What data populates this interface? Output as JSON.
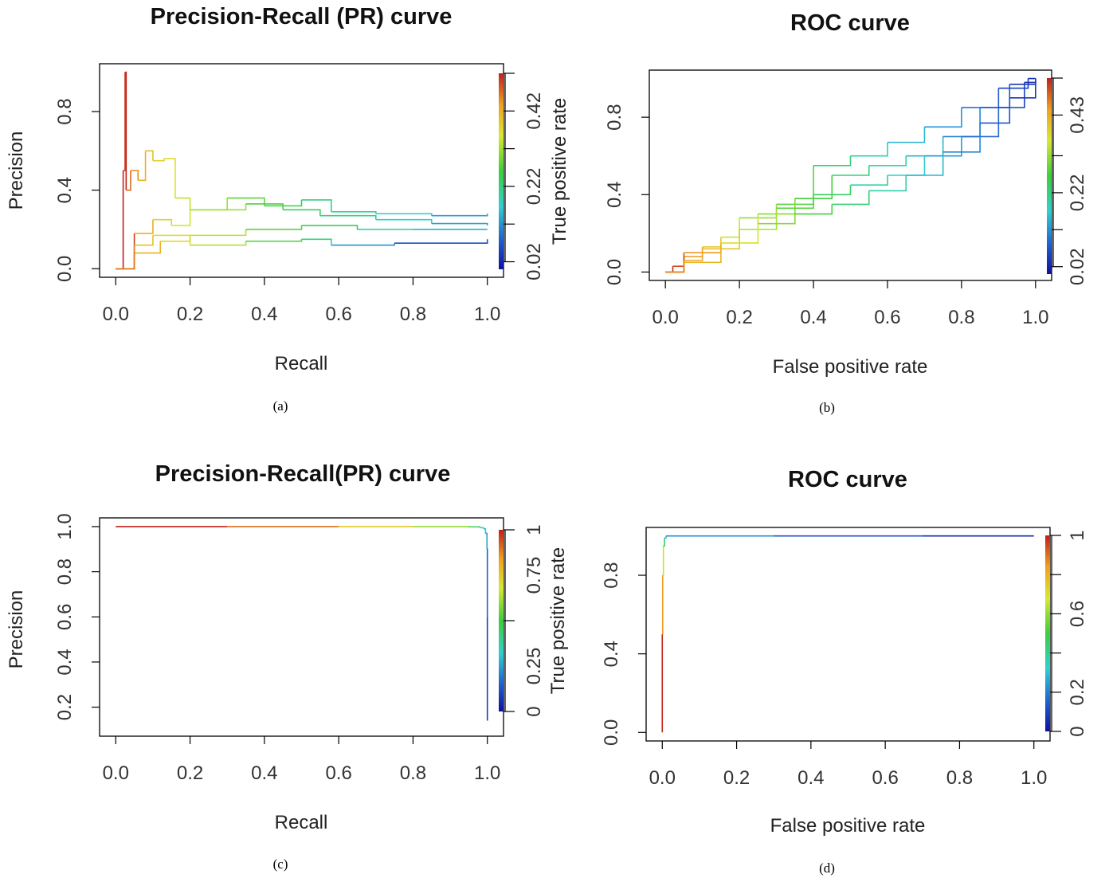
{
  "panels": [
    {
      "caption": "(a)"
    },
    {
      "caption": "(b)"
    },
    {
      "caption": "(c)"
    },
    {
      "caption": "(d)"
    }
  ],
  "chart_data": [
    {
      "type": "line",
      "title": "Precision-Recall (PR) curve",
      "xlabel": "Recall",
      "ylabel": "Precision",
      "colorbar_label": "True positive rate",
      "xlim": [
        0,
        1
      ],
      "ylim": [
        0,
        1
      ],
      "x_ticks": [
        0.0,
        0.2,
        0.4,
        0.6,
        0.8,
        1.0
      ],
      "x_tick_labels": [
        "0.0",
        "0.2",
        "0.4",
        "0.6",
        "0.8",
        "1.0"
      ],
      "y_ticks": [
        0.0,
        0.4,
        0.8
      ],
      "y_tick_labels": [
        "0.0",
        "0.4",
        "0.8"
      ],
      "colorbar_range": [
        0.0,
        0.52
      ],
      "colorbar_ticks": [
        0.02,
        0.22,
        0.42
      ],
      "colorbar_tick_labels": [
        "0.02",
        "0.22",
        "0.42"
      ],
      "colorbar_minor_ticks": [
        0.02,
        0.12,
        0.22,
        0.32,
        0.42,
        0.52
      ],
      "grid": false,
      "series": [
        {
          "points": [
            [
              0.0,
              0.0,
              0.52
            ],
            [
              0.02,
              0.5,
              0.5
            ],
            [
              0.025,
              1.0,
              0.52
            ],
            [
              0.028,
              0.4,
              0.47
            ],
            [
              0.04,
              0.5,
              0.45
            ],
            [
              0.06,
              0.45,
              0.42
            ],
            [
              0.08,
              0.6,
              0.4
            ],
            [
              0.1,
              0.55,
              0.38
            ],
            [
              0.13,
              0.56,
              0.37
            ],
            [
              0.16,
              0.53,
              0.36
            ],
            [
              0.16,
              0.36,
              0.34
            ],
            [
              0.2,
              0.3,
              0.32
            ],
            [
              0.3,
              0.36,
              0.28
            ],
            [
              0.4,
              0.32,
              0.25
            ],
            [
              0.5,
              0.35,
              0.22
            ],
            [
              0.58,
              0.29,
              0.2
            ],
            [
              0.7,
              0.28,
              0.16
            ],
            [
              0.85,
              0.27,
              0.13
            ],
            [
              1.0,
              0.28,
              0.12
            ]
          ]
        },
        {
          "points": [
            [
              0.0,
              0.0,
              0.5
            ],
            [
              0.05,
              0.18,
              0.42
            ],
            [
              0.1,
              0.25,
              0.38
            ],
            [
              0.15,
              0.22,
              0.35
            ],
            [
              0.2,
              0.3,
              0.32
            ],
            [
              0.35,
              0.33,
              0.27
            ],
            [
              0.45,
              0.3,
              0.24
            ],
            [
              0.55,
              0.27,
              0.21
            ],
            [
              0.7,
              0.25,
              0.17
            ],
            [
              0.85,
              0.23,
              0.13
            ],
            [
              1.0,
              0.22,
              0.1
            ]
          ]
        },
        {
          "points": [
            [
              0.0,
              0.0,
              0.48
            ],
            [
              0.05,
              0.08,
              0.42
            ],
            [
              0.12,
              0.14,
              0.38
            ],
            [
              0.2,
              0.17,
              0.33
            ],
            [
              0.35,
              0.2,
              0.28
            ],
            [
              0.5,
              0.22,
              0.24
            ],
            [
              0.65,
              0.2,
              0.19
            ],
            [
              0.8,
              0.2,
              0.14
            ],
            [
              1.0,
              0.2,
              0.1
            ]
          ]
        },
        {
          "points": [
            [
              0.0,
              0.0,
              0.46
            ],
            [
              0.05,
              0.12,
              0.4
            ],
            [
              0.1,
              0.17,
              0.37
            ],
            [
              0.2,
              0.12,
              0.33
            ],
            [
              0.35,
              0.14,
              0.27
            ],
            [
              0.5,
              0.15,
              0.22
            ],
            [
              0.58,
              0.14,
              0.18
            ],
            [
              0.58,
              0.12,
              0.12
            ],
            [
              0.75,
              0.13,
              0.06
            ],
            [
              1.0,
              0.15,
              0.03
            ]
          ]
        }
      ]
    },
    {
      "type": "line",
      "title": "ROC curve",
      "xlabel": "False positive rate",
      "ylabel": "",
      "colorbar_label": "",
      "xlim": [
        0,
        1
      ],
      "ylim": [
        0,
        1
      ],
      "x_ticks": [
        0.0,
        0.2,
        0.4,
        0.6,
        0.8,
        1.0
      ],
      "x_tick_labels": [
        "0.0",
        "0.2",
        "0.4",
        "0.6",
        "0.8",
        "1.0"
      ],
      "y_ticks": [
        0.0,
        0.4,
        0.8
      ],
      "y_tick_labels": [
        "0.0",
        "0.4",
        "0.8"
      ],
      "colorbar_range": [
        0.0,
        0.53
      ],
      "colorbar_ticks": [
        0.02,
        0.22,
        0.43
      ],
      "colorbar_tick_labels": [
        "0.02",
        "0.22",
        "0.43"
      ],
      "colorbar_minor_ticks": [
        0.02,
        0.12,
        0.22,
        0.32,
        0.43,
        0.53
      ],
      "grid": false,
      "series": [
        {
          "points": [
            [
              0.0,
              0.0,
              0.52
            ],
            [
              0.02,
              0.03,
              0.5
            ],
            [
              0.05,
              0.08,
              0.45
            ],
            [
              0.1,
              0.13,
              0.4
            ],
            [
              0.15,
              0.18,
              0.35
            ],
            [
              0.2,
              0.28,
              0.32
            ],
            [
              0.3,
              0.35,
              0.28
            ],
            [
              0.4,
              0.55,
              0.23
            ],
            [
              0.5,
              0.6,
              0.19
            ],
            [
              0.6,
              0.67,
              0.15
            ],
            [
              0.7,
              0.75,
              0.12
            ],
            [
              0.8,
              0.85,
              0.08
            ],
            [
              0.9,
              0.95,
              0.05
            ],
            [
              0.98,
              1.0,
              0.03
            ],
            [
              1.0,
              1.0,
              0.02
            ]
          ]
        },
        {
          "points": [
            [
              0.0,
              0.0,
              0.5
            ],
            [
              0.05,
              0.1,
              0.45
            ],
            [
              0.15,
              0.15,
              0.38
            ],
            [
              0.25,
              0.3,
              0.31
            ],
            [
              0.35,
              0.38,
              0.27
            ],
            [
              0.45,
              0.5,
              0.22
            ],
            [
              0.55,
              0.55,
              0.19
            ],
            [
              0.65,
              0.6,
              0.15
            ],
            [
              0.75,
              0.7,
              0.11
            ],
            [
              0.85,
              0.85,
              0.07
            ],
            [
              0.93,
              0.97,
              0.04
            ],
            [
              1.0,
              1.0,
              0.02
            ]
          ]
        },
        {
          "points": [
            [
              0.0,
              0.0,
              0.48
            ],
            [
              0.05,
              0.06,
              0.44
            ],
            [
              0.1,
              0.12,
              0.4
            ],
            [
              0.2,
              0.22,
              0.33
            ],
            [
              0.3,
              0.33,
              0.28
            ],
            [
              0.4,
              0.4,
              0.24
            ],
            [
              0.5,
              0.45,
              0.2
            ],
            [
              0.6,
              0.5,
              0.17
            ],
            [
              0.7,
              0.6,
              0.13
            ],
            [
              0.8,
              0.7,
              0.09
            ],
            [
              0.9,
              0.85,
              0.05
            ],
            [
              0.97,
              0.98,
              0.03
            ],
            [
              1.0,
              1.0,
              0.02
            ]
          ]
        },
        {
          "points": [
            [
              0.0,
              0.0,
              0.46
            ],
            [
              0.05,
              0.05,
              0.42
            ],
            [
              0.15,
              0.15,
              0.36
            ],
            [
              0.25,
              0.25,
              0.31
            ],
            [
              0.35,
              0.3,
              0.27
            ],
            [
              0.45,
              0.35,
              0.23
            ],
            [
              0.55,
              0.42,
              0.19
            ],
            [
              0.65,
              0.5,
              0.15
            ],
            [
              0.75,
              0.62,
              0.11
            ],
            [
              0.85,
              0.77,
              0.07
            ],
            [
              0.93,
              0.9,
              0.04
            ],
            [
              1.0,
              1.0,
              0.02
            ]
          ]
        }
      ]
    },
    {
      "type": "line",
      "title": "Precision-Recall(PR) curve",
      "xlabel": "Recall",
      "ylabel": "Precision",
      "colorbar_label": "True positive rate",
      "xlim": [
        0,
        1
      ],
      "ylim": [
        0.11,
        1.0
      ],
      "x_ticks": [
        0.0,
        0.2,
        0.4,
        0.6,
        0.8,
        1.0
      ],
      "x_tick_labels": [
        "0.0",
        "0.2",
        "0.4",
        "0.6",
        "0.8",
        "1.0"
      ],
      "y_ticks": [
        0.2,
        0.4,
        0.6,
        0.8,
        1.0
      ],
      "y_tick_labels": [
        "0.2",
        "0.4",
        "0.6",
        "0.8",
        "1.0"
      ],
      "colorbar_range": [
        0.0,
        1.0
      ],
      "colorbar_ticks": [
        0.0,
        0.25,
        0.75,
        1.0
      ],
      "colorbar_tick_labels": [
        "0",
        "0.25",
        "0.75",
        "1"
      ],
      "colorbar_minor_ticks": [
        0.0,
        0.5,
        1.0
      ],
      "grid": false,
      "series": [
        {
          "points": [
            [
              0.0,
              1.0,
              1.0
            ],
            [
              0.3,
              1.0,
              0.9
            ],
            [
              0.6,
              1.0,
              0.75
            ],
            [
              0.8,
              1.0,
              0.6
            ],
            [
              0.95,
              0.999,
              0.45
            ],
            [
              0.98,
              0.995,
              0.35
            ],
            [
              0.99,
              0.99,
              0.3
            ],
            [
              0.995,
              0.97,
              0.25
            ],
            [
              0.999,
              0.9,
              0.15
            ],
            [
              1.0,
              0.6,
              0.08
            ],
            [
              1.0,
              0.14,
              0.0
            ]
          ]
        }
      ]
    },
    {
      "type": "line",
      "title": "ROC curve",
      "xlabel": "False positive rate",
      "ylabel": "",
      "colorbar_label": "",
      "xlim": [
        0,
        1
      ],
      "ylim": [
        0,
        1
      ],
      "x_ticks": [
        0.0,
        0.2,
        0.4,
        0.6,
        0.8,
        1.0
      ],
      "x_tick_labels": [
        "0.0",
        "0.2",
        "0.4",
        "0.6",
        "0.8",
        "1.0"
      ],
      "y_ticks": [
        0.0,
        0.4,
        0.8
      ],
      "y_tick_labels": [
        "0.0",
        "0.4",
        "0.8"
      ],
      "colorbar_range": [
        0.0,
        1.0
      ],
      "colorbar_ticks": [
        0.0,
        0.2,
        0.6,
        1.0
      ],
      "colorbar_tick_labels": [
        "0",
        "0.2",
        "0.6",
        "1"
      ],
      "colorbar_minor_ticks": [
        0.0,
        0.2,
        0.4,
        0.6,
        0.8,
        1.0
      ],
      "grid": false,
      "series": [
        {
          "points": [
            [
              0.0,
              0.0,
              1.0
            ],
            [
              0.0,
              0.5,
              0.85
            ],
            [
              0.001,
              0.8,
              0.65
            ],
            [
              0.003,
              0.95,
              0.45
            ],
            [
              0.006,
              0.99,
              0.3
            ],
            [
              0.01,
              1.0,
              0.22
            ],
            [
              0.3,
              1.0,
              0.12
            ],
            [
              0.7,
              1.0,
              0.05
            ],
            [
              1.0,
              1.0,
              0.0
            ]
          ]
        }
      ]
    }
  ]
}
